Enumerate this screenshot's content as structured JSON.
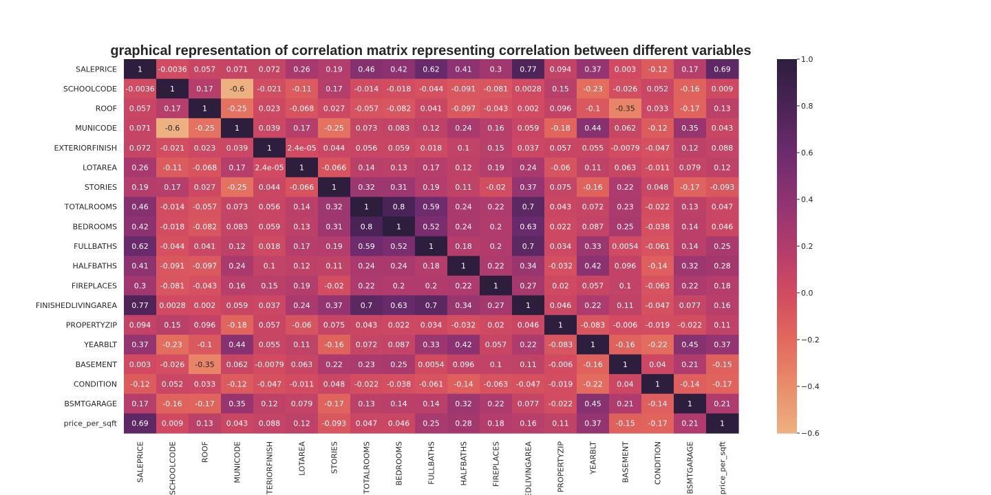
{
  "chart_data": {
    "type": "heatmap",
    "title": "graphical representation of correlation matrix representing correlation between different variables",
    "variables": [
      "SALEPRICE",
      "SCHOOLCODE",
      "ROOF",
      "MUNICODE",
      "EXTERIORFINISH",
      "LOTAREA",
      "STORIES",
      "TOTALROOMS",
      "BEDROOMS",
      "FULLBATHS",
      "HALFBATHS",
      "FIREPLACES",
      "FINISHEDLIVINGAREA",
      "PROPERTYZIP",
      "YEARBLT",
      "BASEMENT",
      "CONDITION",
      "BSMTGARAGE",
      "price_per_sqft"
    ],
    "x_tick_labels": [
      "SALEPRICE",
      "SCHOOLCODE",
      "ROOF",
      "MUNICODE",
      "TERIORFINISH",
      "LOTAREA",
      "STORIES",
      "TOTALROOMS",
      "BEDROOMS",
      "FULLBATHS",
      "HALFBATHS",
      "FIREPLACES",
      "EDLIVINGAREA",
      "PROPERTYZIP",
      "YEARBLT",
      "BASEMENT",
      "CONDITION",
      "BSMTGARAGE",
      "price_per_sqft"
    ],
    "values": [
      [
        1,
        -0.0036,
        0.057,
        0.071,
        0.072,
        0.26,
        0.19,
        0.46,
        0.42,
        0.62,
        0.41,
        0.3,
        0.77,
        0.094,
        0.37,
        0.003,
        -0.12,
        0.17,
        0.69
      ],
      [
        -0.0036,
        1,
        0.17,
        -0.6,
        -0.021,
        -0.11,
        0.17,
        -0.014,
        -0.018,
        -0.044,
        -0.091,
        -0.081,
        0.0028,
        0.15,
        -0.23,
        -0.026,
        0.052,
        -0.16,
        0.009
      ],
      [
        0.057,
        0.17,
        1,
        -0.25,
        0.023,
        -0.068,
        0.027,
        -0.057,
        -0.082,
        0.041,
        -0.097,
        -0.043,
        0.002,
        0.096,
        -0.1,
        -0.35,
        0.033,
        -0.17,
        0.13
      ],
      [
        0.071,
        -0.6,
        -0.25,
        1,
        0.039,
        0.17,
        -0.25,
        0.073,
        0.083,
        0.12,
        0.24,
        0.16,
        0.059,
        -0.18,
        0.44,
        0.062,
        -0.12,
        0.35,
        0.043
      ],
      [
        0.072,
        -0.021,
        0.023,
        0.039,
        1,
        2.4e-05,
        0.044,
        0.056,
        0.059,
        0.018,
        0.1,
        0.15,
        0.037,
        0.057,
        0.055,
        -0.0079,
        -0.047,
        0.12,
        0.088
      ],
      [
        0.26,
        -0.11,
        -0.068,
        0.17,
        2.4e-05,
        1,
        -0.066,
        0.14,
        0.13,
        0.17,
        0.12,
        0.19,
        0.24,
        -0.06,
        0.11,
        0.063,
        -0.011,
        0.079,
        0.12
      ],
      [
        0.19,
        0.17,
        0.027,
        -0.25,
        0.044,
        -0.066,
        1,
        0.32,
        0.31,
        0.19,
        0.11,
        -0.02,
        0.37,
        0.075,
        -0.16,
        0.22,
        0.048,
        -0.17,
        -0.093
      ],
      [
        0.46,
        -0.014,
        -0.057,
        0.073,
        0.056,
        0.14,
        0.32,
        1,
        0.8,
        0.59,
        0.24,
        0.22,
        0.7,
        0.043,
        0.072,
        0.23,
        -0.022,
        0.13,
        0.047
      ],
      [
        0.42,
        -0.018,
        -0.082,
        0.083,
        0.059,
        0.13,
        0.31,
        0.8,
        1,
        0.52,
        0.24,
        0.2,
        0.63,
        0.022,
        0.087,
        0.25,
        -0.038,
        0.14,
        0.046
      ],
      [
        0.62,
        -0.044,
        0.041,
        0.12,
        0.018,
        0.17,
        0.19,
        0.59,
        0.52,
        1,
        0.18,
        0.2,
        0.7,
        0.034,
        0.33,
        0.0054,
        -0.061,
        0.14,
        0.25
      ],
      [
        0.41,
        -0.091,
        -0.097,
        0.24,
        0.1,
        0.12,
        0.11,
        0.24,
        0.24,
        0.18,
        1,
        0.22,
        0.34,
        -0.032,
        0.42,
        0.096,
        -0.14,
        0.32,
        0.28
      ],
      [
        0.3,
        -0.081,
        -0.043,
        0.16,
        0.15,
        0.19,
        -0.02,
        0.22,
        0.2,
        0.2,
        0.22,
        1,
        0.27,
        0.02,
        0.057,
        0.1,
        -0.063,
        0.22,
        0.18
      ],
      [
        0.77,
        0.0028,
        0.002,
        0.059,
        0.037,
        0.24,
        0.37,
        0.7,
        0.63,
        0.7,
        0.34,
        0.27,
        1,
        0.046,
        0.22,
        0.11,
        -0.047,
        0.077,
        0.16
      ],
      [
        0.094,
        0.15,
        0.096,
        -0.18,
        0.057,
        -0.06,
        0.075,
        0.043,
        0.022,
        0.034,
        -0.032,
        0.02,
        0.046,
        1,
        -0.083,
        -0.006,
        -0.019,
        -0.022,
        0.11
      ],
      [
        0.37,
        -0.23,
        -0.1,
        0.44,
        0.055,
        0.11,
        -0.16,
        0.072,
        0.087,
        0.33,
        0.42,
        0.057,
        0.22,
        -0.083,
        1,
        -0.16,
        -0.22,
        0.45,
        0.37
      ],
      [
        0.003,
        -0.026,
        -0.35,
        0.062,
        -0.0079,
        0.063,
        0.22,
        0.23,
        0.25,
        0.0054,
        0.096,
        0.1,
        0.11,
        -0.006,
        -0.16,
        1,
        0.04,
        0.21,
        -0.15
      ],
      [
        -0.12,
        0.052,
        0.033,
        -0.12,
        -0.047,
        -0.011,
        0.048,
        -0.022,
        -0.038,
        -0.061,
        -0.14,
        -0.063,
        -0.047,
        -0.019,
        -0.22,
        0.04,
        1,
        -0.14,
        -0.17
      ],
      [
        0.17,
        -0.16,
        -0.17,
        0.35,
        0.12,
        0.079,
        -0.17,
        0.13,
        0.14,
        0.14,
        0.32,
        0.22,
        0.077,
        -0.022,
        0.45,
        0.21,
        -0.14,
        1,
        0.21
      ],
      [
        0.69,
        0.009,
        0.13,
        0.043,
        0.088,
        0.12,
        -0.093,
        0.047,
        0.046,
        0.25,
        0.28,
        0.18,
        0.16,
        0.11,
        0.37,
        -0.15,
        -0.17,
        0.21,
        1
      ]
    ],
    "labels": [
      [
        "1",
        "-0.0036",
        "0.057",
        "0.071",
        "0.072",
        "0.26",
        "0.19",
        "0.46",
        "0.42",
        "0.62",
        "0.41",
        "0.3",
        "0.77",
        "0.094",
        "0.37",
        "0.003",
        "-0.12",
        "0.17",
        "0.69"
      ],
      [
        "-0.0036",
        "1",
        "0.17",
        "-0.6",
        "-0.021",
        "-0.11",
        "0.17",
        "-0.014",
        "-0.018",
        "-0.044",
        "-0.091",
        "-0.081",
        "0.0028",
        "0.15",
        "-0.23",
        "-0.026",
        "0.052",
        "-0.16",
        "0.009"
      ],
      [
        "0.057",
        "0.17",
        "1",
        "-0.25",
        "0.023",
        "-0.068",
        "0.027",
        "-0.057",
        "-0.082",
        "0.041",
        "-0.097",
        "-0.043",
        "0.002",
        "0.096",
        "-0.1",
        "-0.35",
        "0.033",
        "-0.17",
        "0.13"
      ],
      [
        "0.071",
        "-0.6",
        "-0.25",
        "1",
        "0.039",
        "0.17",
        "-0.25",
        "0.073",
        "0.083",
        "0.12",
        "0.24",
        "0.16",
        "0.059",
        "-0.18",
        "0.44",
        "0.062",
        "-0.12",
        "0.35",
        "0.043"
      ],
      [
        "0.072",
        "-0.021",
        "0.023",
        "0.039",
        "1",
        "2.4e-05",
        "0.044",
        "0.056",
        "0.059",
        "0.018",
        "0.1",
        "0.15",
        "0.037",
        "0.057",
        "0.055",
        "-0.0079",
        "-0.047",
        "0.12",
        "0.088"
      ],
      [
        "0.26",
        "-0.11",
        "-0.068",
        "0.17",
        "2.4e-05",
        "1",
        "-0.066",
        "0.14",
        "0.13",
        "0.17",
        "0.12",
        "0.19",
        "0.24",
        "-0.06",
        "0.11",
        "0.063",
        "-0.011",
        "0.079",
        "0.12"
      ],
      [
        "0.19",
        "0.17",
        "0.027",
        "-0.25",
        "0.044",
        "-0.066",
        "1",
        "0.32",
        "0.31",
        "0.19",
        "0.11",
        "-0.02",
        "0.37",
        "0.075",
        "-0.16",
        "0.22",
        "0.048",
        "-0.17",
        "-0.093"
      ],
      [
        "0.46",
        "-0.014",
        "-0.057",
        "0.073",
        "0.056",
        "0.14",
        "0.32",
        "1",
        "0.8",
        "0.59",
        "0.24",
        "0.22",
        "0.7",
        "0.043",
        "0.072",
        "0.23",
        "-0.022",
        "0.13",
        "0.047"
      ],
      [
        "0.42",
        "-0.018",
        "-0.082",
        "0.083",
        "0.059",
        "0.13",
        "0.31",
        "0.8",
        "1",
        "0.52",
        "0.24",
        "0.2",
        "0.63",
        "0.022",
        "0.087",
        "0.25",
        "-0.038",
        "0.14",
        "0.046"
      ],
      [
        "0.62",
        "-0.044",
        "0.041",
        "0.12",
        "0.018",
        "0.17",
        "0.19",
        "0.59",
        "0.52",
        "1",
        "0.18",
        "0.2",
        "0.7",
        "0.034",
        "0.33",
        "0.0054",
        "-0.061",
        "0.14",
        "0.25"
      ],
      [
        "0.41",
        "-0.091",
        "-0.097",
        "0.24",
        "0.1",
        "0.12",
        "0.11",
        "0.24",
        "0.24",
        "0.18",
        "1",
        "0.22",
        "0.34",
        "-0.032",
        "0.42",
        "0.096",
        "-0.14",
        "0.32",
        "0.28"
      ],
      [
        "0.3",
        "-0.081",
        "-0.043",
        "0.16",
        "0.15",
        "0.19",
        "-0.02",
        "0.22",
        "0.2",
        "0.2",
        "0.22",
        "1",
        "0.27",
        "0.02",
        "0.057",
        "0.1",
        "-0.063",
        "0.22",
        "0.18"
      ],
      [
        "0.77",
        "0.0028",
        "0.002",
        "0.059",
        "0.037",
        "0.24",
        "0.37",
        "0.7",
        "0.63",
        "0.7",
        "0.34",
        "0.27",
        "1",
        "0.046",
        "0.22",
        "0.11",
        "-0.047",
        "0.077",
        "0.16"
      ],
      [
        "0.094",
        "0.15",
        "0.096",
        "-0.18",
        "0.057",
        "-0.06",
        "0.075",
        "0.043",
        "0.022",
        "0.034",
        "-0.032",
        "0.02",
        "0.046",
        "1",
        "-0.083",
        "-0.006",
        "-0.019",
        "-0.022",
        "0.11"
      ],
      [
        "0.37",
        "-0.23",
        "-0.1",
        "0.44",
        "0.055",
        "0.11",
        "-0.16",
        "0.072",
        "0.087",
        "0.33",
        "0.42",
        "0.057",
        "0.22",
        "-0.083",
        "1",
        "-0.16",
        "-0.22",
        "0.45",
        "0.37"
      ],
      [
        "0.003",
        "-0.026",
        "-0.35",
        "0.062",
        "-0.0079",
        "0.063",
        "0.22",
        "0.23",
        "0.25",
        "0.0054",
        "0.096",
        "0.1",
        "0.11",
        "-0.006",
        "-0.16",
        "1",
        "0.04",
        "0.21",
        "-0.15"
      ],
      [
        "-0.12",
        "0.052",
        "0.033",
        "-0.12",
        "-0.047",
        "-0.011",
        "0.048",
        "-0.022",
        "-0.038",
        "-0.061",
        "-0.14",
        "-0.063",
        "-0.047",
        "-0.019",
        "-0.22",
        "0.04",
        "1",
        "-0.14",
        "-0.17"
      ],
      [
        "0.17",
        "-0.16",
        "-0.17",
        "0.35",
        "0.12",
        "0.079",
        "-0.17",
        "0.13",
        "0.14",
        "0.14",
        "0.32",
        "0.22",
        "0.077",
        "-0.022",
        "0.45",
        "0.21",
        "-0.14",
        "1",
        "0.21"
      ],
      [
        "0.69",
        "0.009",
        "0.13",
        "0.043",
        "0.088",
        "0.12",
        "-0.093",
        "0.047",
        "0.046",
        "0.25",
        "0.28",
        "0.18",
        "0.16",
        "0.11",
        "0.37",
        "-0.15",
        "-0.17",
        "0.21",
        "1"
      ]
    ],
    "color_range": [
      -0.6,
      1.0
    ],
    "colorbar_ticks": [
      1.0,
      0.8,
      0.6,
      0.4,
      0.2,
      0.0,
      -0.2,
      -0.4,
      -0.6
    ],
    "colorbar_tick_labels": [
      "1.0",
      "0.8",
      "0.6",
      "0.4",
      "0.2",
      "0.0",
      "−0.2",
      "−0.4",
      "−0.6"
    ],
    "colormap_stops": [
      "#edb081",
      "#e98d6b",
      "#e3685c",
      "#d14a61",
      "#b13c6c",
      "#8f3371",
      "#6c2b6d",
      "#4a2456",
      "#2d1e3e"
    ],
    "grid": false,
    "legend": "colorbar-right"
  }
}
